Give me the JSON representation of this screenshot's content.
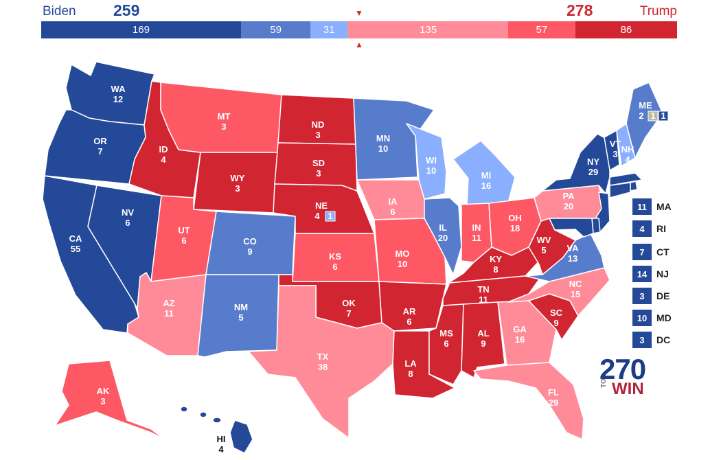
{
  "header": {
    "dem_name": "Biden",
    "dem_total": "259",
    "rep_name": "Trump",
    "rep_total": "278"
  },
  "bar": [
    {
      "label": "169",
      "value": 169,
      "color": "#244999"
    },
    {
      "label": "59",
      "value": 59,
      "color": "#577ccc"
    },
    {
      "label": "31",
      "value": 31,
      "color": "#8aafff"
    },
    {
      "label": "1",
      "value": 1,
      "color": "#bfb8a0"
    },
    {
      "label": "135",
      "value": 135,
      "color": "#ff8b98"
    },
    {
      "label": "57",
      "value": 57,
      "color": "#ff5865"
    },
    {
      "label": "86",
      "value": 86,
      "color": "#d22532"
    }
  ],
  "colors": {
    "safe_d": "#244999",
    "likely_d": "#577ccc",
    "lean_d": "#8aafff",
    "tossup": "#bfb8a0",
    "lean_r": "#ff8b98",
    "likely_r": "#ff5865",
    "safe_r": "#d22532"
  },
  "states": [
    {
      "abbr": "WA",
      "ev": "12",
      "rating": "safe_d"
    },
    {
      "abbr": "OR",
      "ev": "7",
      "rating": "safe_d"
    },
    {
      "abbr": "CA",
      "ev": "55",
      "rating": "safe_d"
    },
    {
      "abbr": "NV",
      "ev": "6",
      "rating": "safe_d"
    },
    {
      "abbr": "ID",
      "ev": "4",
      "rating": "safe_r"
    },
    {
      "abbr": "MT",
      "ev": "3",
      "rating": "likely_r"
    },
    {
      "abbr": "WY",
      "ev": "3",
      "rating": "safe_r"
    },
    {
      "abbr": "UT",
      "ev": "6",
      "rating": "likely_r"
    },
    {
      "abbr": "AZ",
      "ev": "11",
      "rating": "lean_r"
    },
    {
      "abbr": "CO",
      "ev": "9",
      "rating": "likely_d"
    },
    {
      "abbr": "NM",
      "ev": "5",
      "rating": "likely_d"
    },
    {
      "abbr": "ND",
      "ev": "3",
      "rating": "safe_r"
    },
    {
      "abbr": "SD",
      "ev": "3",
      "rating": "safe_r"
    },
    {
      "abbr": "NE",
      "ev": "4",
      "rating": "safe_r",
      "district_ev": "1",
      "district_rating": "lean_d"
    },
    {
      "abbr": "KS",
      "ev": "6",
      "rating": "likely_r"
    },
    {
      "abbr": "OK",
      "ev": "7",
      "rating": "safe_r"
    },
    {
      "abbr": "TX",
      "ev": "38",
      "rating": "lean_r"
    },
    {
      "abbr": "MN",
      "ev": "10",
      "rating": "likely_d"
    },
    {
      "abbr": "IA",
      "ev": "6",
      "rating": "lean_r"
    },
    {
      "abbr": "MO",
      "ev": "10",
      "rating": "likely_r"
    },
    {
      "abbr": "AR",
      "ev": "6",
      "rating": "safe_r"
    },
    {
      "abbr": "LA",
      "ev": "8",
      "rating": "safe_r"
    },
    {
      "abbr": "WI",
      "ev": "10",
      "rating": "lean_d"
    },
    {
      "abbr": "IL",
      "ev": "20",
      "rating": "likely_d"
    },
    {
      "abbr": "MI",
      "ev": "16",
      "rating": "lean_d"
    },
    {
      "abbr": "IN",
      "ev": "11",
      "rating": "likely_r"
    },
    {
      "abbr": "OH",
      "ev": "18",
      "rating": "likely_r"
    },
    {
      "abbr": "KY",
      "ev": "8",
      "rating": "safe_r"
    },
    {
      "abbr": "TN",
      "ev": "11",
      "rating": "safe_r"
    },
    {
      "abbr": "MS",
      "ev": "6",
      "rating": "safe_r"
    },
    {
      "abbr": "AL",
      "ev": "9",
      "rating": "safe_r"
    },
    {
      "abbr": "GA",
      "ev": "16",
      "rating": "lean_r"
    },
    {
      "abbr": "FL",
      "ev": "29",
      "rating": "lean_r"
    },
    {
      "abbr": "SC",
      "ev": "9",
      "rating": "safe_r"
    },
    {
      "abbr": "NC",
      "ev": "15",
      "rating": "lean_r"
    },
    {
      "abbr": "VA",
      "ev": "13",
      "rating": "likely_d"
    },
    {
      "abbr": "WV",
      "ev": "5",
      "rating": "safe_r"
    },
    {
      "abbr": "PA",
      "ev": "20",
      "rating": "lean_r"
    },
    {
      "abbr": "NY",
      "ev": "29",
      "rating": "safe_d"
    },
    {
      "abbr": "VT",
      "ev": "3",
      "rating": "safe_d"
    },
    {
      "abbr": "NH",
      "ev": "4",
      "rating": "lean_d"
    },
    {
      "abbr": "ME",
      "ev": "2",
      "rating": "likely_d",
      "district_evs": [
        "1",
        "1"
      ],
      "district_ratings": [
        "tossup",
        "safe_d"
      ]
    },
    {
      "abbr": "AK",
      "ev": "3",
      "rating": "likely_r"
    },
    {
      "abbr": "HI",
      "ev": "4",
      "rating": "safe_d"
    }
  ],
  "small_states": [
    {
      "ev": "11",
      "abbr": "MA"
    },
    {
      "ev": "4",
      "abbr": "RI"
    },
    {
      "ev": "7",
      "abbr": "CT"
    },
    {
      "ev": "14",
      "abbr": "NJ"
    },
    {
      "ev": "3",
      "abbr": "DE"
    },
    {
      "ev": "10",
      "abbr": "MD"
    },
    {
      "ev": "3",
      "abbr": "DC"
    }
  ],
  "logo": {
    "number": "270",
    "to": "TO",
    "win": "WIN"
  }
}
